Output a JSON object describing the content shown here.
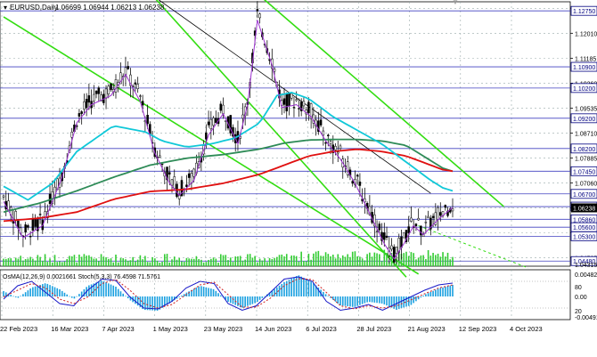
{
  "chart_data": {
    "type": "line",
    "title": "EURUSD,Daily",
    "ohlc_text": "1.06699 1.06944 1.06213 1.06238",
    "price_axis": {
      "ylim": [
        1.0431,
        1.1305
      ],
      "ticks": [
        "1.12835",
        "1.12010",
        "1.11185",
        "1.10360",
        "1.09535",
        "1.08710",
        "1.07885",
        "1.07060",
        "1.06235",
        "1.05410",
        "1.04585"
      ],
      "tick_values": [
        1.12835,
        1.1201,
        1.11185,
        1.1036,
        1.09535,
        1.0871,
        1.07885,
        1.0706,
        1.06235,
        1.0541,
        1.04585
      ]
    },
    "date_axis": {
      "labels": [
        "22 Feb 2023",
        "16 Mar 2023",
        "7 Apr 2023",
        "1 May 2023",
        "23 May 2023",
        "14 Jun 2023",
        "6 Jul 2023",
        "28 Jul 2023",
        "21 Aug 2023",
        "12 Sep 2023",
        "4 Oct 2023"
      ]
    },
    "price_levels": [
      {
        "label": "1.12750",
        "value": 1.1275,
        "color": "#000080"
      },
      {
        "label": "1.10900",
        "value": 1.109,
        "color": "#000080"
      },
      {
        "label": "1.10200",
        "value": 1.102,
        "color": "#000080"
      },
      {
        "label": "1.09200",
        "value": 1.092,
        "color": "#000080"
      },
      {
        "label": "1.08200",
        "value": 1.082,
        "color": "#000080"
      },
      {
        "label": "1.07450",
        "value": 1.0745,
        "color": "#000080"
      },
      {
        "label": "1.06700",
        "value": 1.067,
        "color": "#000080"
      },
      {
        "label": "1.06280",
        "value": 1.0628,
        "color": "#000080"
      },
      {
        "label": "1.05860",
        "value": 1.0586,
        "color": "#000080"
      },
      {
        "label": "1.05600",
        "value": 1.056,
        "color": "#000080"
      },
      {
        "label": "1.05300",
        "value": 1.053,
        "color": "#000080"
      },
      {
        "label": "1.04480",
        "value": 1.0448,
        "color": "#000080"
      }
    ],
    "current_price": {
      "label": "1.06238",
      "value": 1.06238
    },
    "bottom_label": "1.04315",
    "x_range": [
      0,
      184
    ],
    "series": [
      {
        "color": "#2e8b57",
        "x": [
          0,
          15,
          30,
          45,
          60,
          75,
          90,
          105,
          115,
          125,
          135,
          145,
          155,
          165,
          175,
          180,
          184
        ],
        "values": [
          1.061,
          1.064,
          1.068,
          1.0725,
          1.0765,
          1.0788,
          1.08,
          1.0818,
          1.0838,
          1.0848,
          1.085,
          1.085,
          1.0845,
          1.083,
          1.078,
          1.0755,
          1.0745
        ]
      },
      {
        "color": "#e01010",
        "x": [
          0,
          15,
          30,
          45,
          60,
          75,
          90,
          105,
          115,
          125,
          135,
          145,
          155,
          165,
          175,
          180,
          184
        ],
        "values": [
          1.058,
          1.059,
          1.061,
          1.0652,
          1.0678,
          1.0685,
          1.0705,
          1.0735,
          1.0765,
          1.0795,
          1.081,
          1.0818,
          1.081,
          1.0795,
          1.0765,
          1.075,
          1.0745
        ]
      },
      {
        "color": "#10c8d8",
        "x": [
          0,
          10,
          20,
          30,
          45,
          58,
          65,
          75,
          85,
          95,
          105,
          112,
          118,
          125,
          135,
          145,
          155,
          165,
          175,
          180,
          184
        ],
        "values": [
          1.0695,
          1.065,
          1.0705,
          1.081,
          1.0895,
          1.0875,
          1.0845,
          1.0825,
          1.0835,
          1.0855,
          1.0905,
          1.0995,
          1.1005,
          1.0985,
          1.0925,
          1.088,
          1.0835,
          1.0775,
          1.0715,
          1.069,
          1.068
        ]
      }
    ],
    "trend_lines": [
      {
        "color": "#33dd11",
        "x": [
          0,
          170
        ],
        "values": [
          1.1255,
          1.0405
        ]
      },
      {
        "color": "#33dd11",
        "x": [
          105,
          205
        ],
        "values": [
          1.1325,
          1.0628
        ]
      },
      {
        "color": "#33dd11",
        "x": [
          60,
          165
        ],
        "values": [
          1.1335,
          1.0395
        ]
      },
      {
        "color": "#000000",
        "x": [
          60,
          175
        ],
        "values": [
          1.1332,
          1.0672
        ]
      }
    ],
    "oscillator": {
      "label": "OsMA(12,26,9) 0.0021661  Stoch(5,3,3) 76.4598 71.5761",
      "axis_labels": [
        "0.004827",
        "80",
        "0.00",
        "20",
        "-0.004917"
      ],
      "osma_values": [
        0.6,
        -0.2,
        1.0,
        1.5,
        0.8,
        -0.3,
        1.2,
        1.8,
        1.1,
        -0.4,
        -1.5,
        -1.6,
        -0.6,
        0.4,
        1.2,
        0.8,
        -0.6,
        -1.3,
        -0.7,
        0.5,
        1.6,
        2.4,
        1.6,
        0.2,
        -1.0,
        -1.2,
        -0.6,
        -0.8,
        -1.5,
        -1.0,
        0.2,
        0.9,
        1.3
      ],
      "stoch_main": [
        40,
        70,
        80,
        55,
        30,
        25,
        60,
        85,
        82,
        45,
        20,
        18,
        35,
        65,
        80,
        75,
        30,
        15,
        25,
        55,
        85,
        90,
        80,
        35,
        15,
        20,
        28,
        15,
        30,
        45,
        60,
        72,
        76
      ],
      "stoch_signal": [
        45,
        60,
        75,
        65,
        40,
        30,
        45,
        75,
        84,
        60,
        30,
        20,
        28,
        50,
        72,
        78,
        50,
        22,
        22,
        42,
        70,
        86,
        84,
        55,
        25,
        18,
        25,
        20,
        25,
        38,
        52,
        65,
        72
      ]
    },
    "colors": {
      "candle": "#111111",
      "level_line": "#4040c0",
      "stoch_main": "#1818c8",
      "stoch_signal": "#d02020",
      "osma": "#1aa0e0"
    }
  }
}
